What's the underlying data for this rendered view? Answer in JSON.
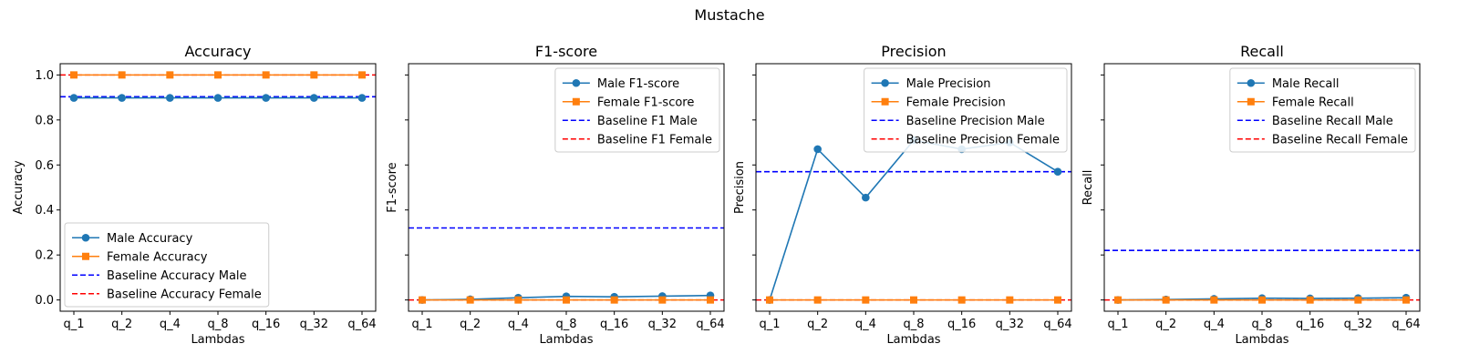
{
  "figure": {
    "suptitle": "Mustache"
  },
  "chart_data": [
    {
      "type": "line",
      "title": "Accuracy",
      "xlabel": "Lambdas",
      "ylabel": "Accuracy",
      "categories": [
        "q_1",
        "q_2",
        "q_4",
        "q_8",
        "q_16",
        "q_32",
        "q_64"
      ],
      "ylim": [
        -0.05,
        1.05
      ],
      "yticks": [
        0.0,
        0.2,
        0.4,
        0.6,
        0.8,
        1.0
      ],
      "ytick_labels": [
        "0.0",
        "0.2",
        "0.4",
        "0.6",
        "0.8",
        "1.0"
      ],
      "legend_position": "lower-left",
      "series": [
        {
          "name": "Male Accuracy",
          "values": [
            0.898,
            0.898,
            0.898,
            0.898,
            0.898,
            0.898,
            0.898
          ],
          "color": "#1f77b4",
          "marker": "circle"
        },
        {
          "name": "Female Accuracy",
          "values": [
            1.0,
            1.0,
            1.0,
            1.0,
            1.0,
            1.0,
            1.0
          ],
          "color": "#ff7f0e",
          "marker": "square"
        }
      ],
      "baselines": [
        {
          "name": "Baseline Accuracy Male",
          "value": 0.903,
          "color": "#0000ff"
        },
        {
          "name": "Baseline Accuracy Female",
          "value": 1.0,
          "color": "#ff0000"
        }
      ]
    },
    {
      "type": "line",
      "title": "F1-score",
      "xlabel": "Lambdas",
      "ylabel": "F1-score",
      "categories": [
        "q_1",
        "q_2",
        "q_4",
        "q_8",
        "q_16",
        "q_32",
        "q_64"
      ],
      "ylim": [
        -0.05,
        1.05
      ],
      "yticks": [
        0.0,
        0.2,
        0.4,
        0.6,
        0.8,
        1.0
      ],
      "legend_position": "upper-right",
      "series": [
        {
          "name": "Male F1-score",
          "values": [
            0.0,
            0.003,
            0.01,
            0.016,
            0.014,
            0.017,
            0.02
          ],
          "color": "#1f77b4",
          "marker": "circle"
        },
        {
          "name": "Female F1-score",
          "values": [
            0.0,
            0.0,
            0.0,
            0.0,
            0.0,
            0.0,
            0.0
          ],
          "color": "#ff7f0e",
          "marker": "square"
        }
      ],
      "baselines": [
        {
          "name": "Baseline F1 Male",
          "value": 0.32,
          "color": "#0000ff"
        },
        {
          "name": "Baseline F1 Female",
          "value": 0.0,
          "color": "#ff0000"
        }
      ]
    },
    {
      "type": "line",
      "title": "Precision",
      "xlabel": "Lambdas",
      "ylabel": "Precision",
      "categories": [
        "q_1",
        "q_2",
        "q_4",
        "q_8",
        "q_16",
        "q_32",
        "q_64"
      ],
      "ylim": [
        -0.05,
        1.05
      ],
      "yticks": [
        0.0,
        0.2,
        0.4,
        0.6,
        0.8,
        1.0
      ],
      "legend_position": "upper-right",
      "series": [
        {
          "name": "Male Precision",
          "values": [
            0.0,
            0.67,
            0.455,
            0.71,
            0.67,
            0.7,
            0.57
          ],
          "color": "#1f77b4",
          "marker": "circle"
        },
        {
          "name": "Female Precision",
          "values": [
            0.0,
            0.0,
            0.0,
            0.0,
            0.0,
            0.0,
            0.0
          ],
          "color": "#ff7f0e",
          "marker": "square"
        }
      ],
      "baselines": [
        {
          "name": "Baseline Precision Male",
          "value": 0.57,
          "color": "#0000ff"
        },
        {
          "name": "Baseline Precision Female",
          "value": 0.0,
          "color": "#ff0000"
        }
      ]
    },
    {
      "type": "line",
      "title": "Recall",
      "xlabel": "Lambdas",
      "ylabel": "Recall",
      "categories": [
        "q_1",
        "q_2",
        "q_4",
        "q_8",
        "q_16",
        "q_32",
        "q_64"
      ],
      "ylim": [
        -0.05,
        1.05
      ],
      "yticks": [
        0.0,
        0.2,
        0.4,
        0.6,
        0.8,
        1.0
      ],
      "legend_position": "upper-right",
      "series": [
        {
          "name": "Male Recall",
          "values": [
            0.0,
            0.002,
            0.005,
            0.008,
            0.007,
            0.008,
            0.01
          ],
          "color": "#1f77b4",
          "marker": "circle"
        },
        {
          "name": "Female Recall",
          "values": [
            0.0,
            0.0,
            0.0,
            0.0,
            0.0,
            0.0,
            0.0
          ],
          "color": "#ff7f0e",
          "marker": "square"
        }
      ],
      "baselines": [
        {
          "name": "Baseline Recall Male",
          "value": 0.22,
          "color": "#0000ff"
        },
        {
          "name": "Baseline Recall Female",
          "value": 0.0,
          "color": "#ff0000"
        }
      ]
    }
  ]
}
